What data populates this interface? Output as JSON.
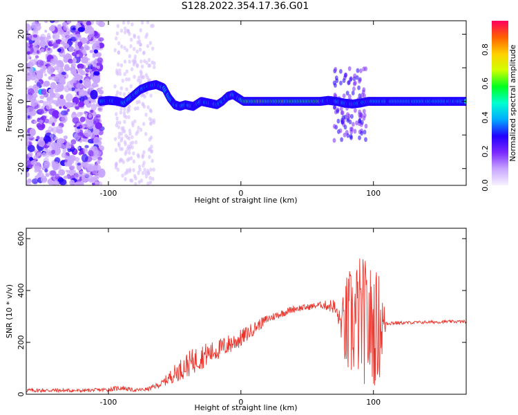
{
  "title": "S128.2022.354.17.36.G01",
  "chart_data": [
    {
      "type": "heatmap",
      "xlabel": "Height of straight line (km)",
      "ylabel": "Frequency (Hz)",
      "xlim": [
        -162,
        170
      ],
      "ylim": [
        -25,
        24
      ],
      "xticks": [
        -100,
        0,
        100
      ],
      "yticks": [
        -20,
        -10,
        0,
        10,
        20
      ],
      "colorbar": {
        "label": "Normalized spectral amplitude",
        "range": [
          0,
          0.97
        ],
        "ticks": [
          "0.0",
          "0.2",
          "0.4",
          "0.6",
          "0.8"
        ],
        "colormap": [
          "#f7f2ff",
          "#c9a6ff",
          "#7b28ff",
          "#2200ff",
          "#00aaff",
          "#00ffd0",
          "#00ff20",
          "#d0ff00",
          "#ffd000",
          "#ff6000",
          "#ff0060"
        ]
      },
      "ridge": [
        [
          -106,
          0
        ],
        [
          -100,
          0.3
        ],
        [
          -94,
          0.1
        ],
        [
          -88,
          -0.5
        ],
        [
          -82,
          1.5
        ],
        [
          -76,
          3.5
        ],
        [
          -70,
          4.5
        ],
        [
          -64,
          5
        ],
        [
          -58,
          4
        ],
        [
          -54,
          1
        ],
        [
          -50,
          -1
        ],
        [
          -46,
          -1.5
        ],
        [
          -42,
          -1
        ],
        [
          -36,
          -1.5
        ],
        [
          -30,
          0
        ],
        [
          -24,
          -0.5
        ],
        [
          -18,
          -1
        ],
        [
          -14,
          0
        ],
        [
          -10,
          1.5
        ],
        [
          -6,
          2
        ],
        [
          -2,
          1
        ],
        [
          2,
          0
        ],
        [
          10,
          0
        ],
        [
          20,
          0
        ],
        [
          30,
          0
        ],
        [
          40,
          0
        ],
        [
          50,
          0
        ],
        [
          60,
          0
        ],
        [
          66,
          0.3
        ],
        [
          72,
          0
        ],
        [
          78,
          -0.5
        ],
        [
          84,
          -0.8
        ],
        [
          90,
          -0.5
        ],
        [
          96,
          0
        ],
        [
          100,
          0
        ],
        [
          120,
          0
        ],
        [
          140,
          0
        ],
        [
          160,
          0
        ],
        [
          170,
          0
        ]
      ]
    },
    {
      "type": "line",
      "xlabel": "Height of straight line (km)",
      "ylabel": "SNR (10 * v/v)",
      "xlim": [
        -162,
        170
      ],
      "ylim": [
        0,
        640
      ],
      "xticks": [
        -100,
        0,
        100
      ],
      "yticks": [
        0,
        200,
        400,
        600
      ],
      "series": [
        {
          "color": "#e8332b",
          "x": [
            -162,
            -140,
            -120,
            -100,
            -90,
            -80,
            -70,
            -60,
            -50,
            -40,
            -30,
            -20,
            -10,
            0,
            10,
            20,
            30,
            40,
            50,
            60,
            70,
            75,
            80,
            85,
            90,
            95,
            100,
            105,
            110,
            120,
            140,
            160,
            170
          ],
          "y": [
            15,
            15,
            14,
            18,
            25,
            15,
            20,
            40,
            80,
            115,
            145,
            165,
            190,
            215,
            255,
            290,
            310,
            330,
            335,
            345,
            340,
            280,
            250,
            280,
            300,
            270,
            255,
            265,
            275,
            275,
            278,
            280,
            280
          ],
          "noise": [
            8,
            8,
            6,
            8,
            10,
            6,
            8,
            12,
            35,
            50,
            50,
            40,
            40,
            35,
            25,
            18,
            15,
            14,
            12,
            12,
            30,
            40,
            220,
            230,
            240,
            250,
            230,
            210,
            10,
            6,
            6,
            6,
            6
          ]
        }
      ]
    }
  ]
}
